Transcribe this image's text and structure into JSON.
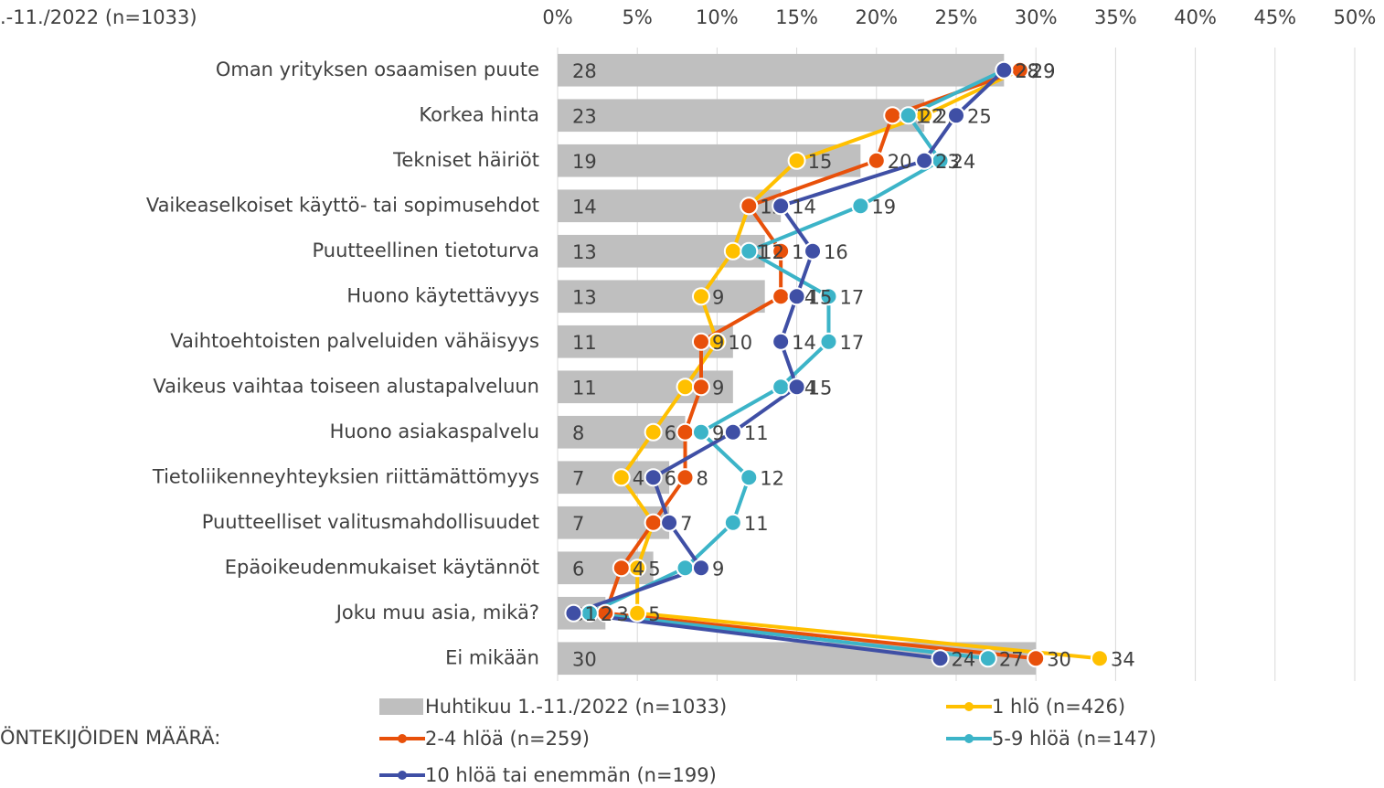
{
  "chart_data": {
    "type": "bar",
    "title": ".-11./2022 (n=1033)",
    "legend_title": "ÖNTEKIJÖIDEN MÄÄRÄ:",
    "categories": [
      "Oman yrityksen osaamisen puute",
      "Korkea hinta",
      "Tekniset häiriöt",
      "Vaikeaselkoiset käyttö- tai sopimusehdot",
      "Puutteellinen tietoturva",
      "Huono käytettävyys",
      "Vaihtoehtoisten palveluiden vähäisyys",
      "Vaikeus vaihtaa toiseen alustapalveluun",
      "Huono asiakaspalvelu",
      "Tietoliikenneyhteyksien riittämättömyys",
      "Puutteelliset valitusmahdollisuudet",
      "Epäoikeudenmukaiset käytännöt",
      "Joku muu asia, mikä?",
      "Ei mikään"
    ],
    "series": [
      {
        "name": "Huhtikuu 1.-11./2022 (n=1033)",
        "type": "bar",
        "color": "#bfbfbf",
        "values": [
          28,
          23,
          19,
          14,
          13,
          13,
          11,
          11,
          8,
          7,
          7,
          6,
          3,
          30
        ]
      },
      {
        "name": "1 hlö (n=426)",
        "type": "line",
        "color": "#ffc000",
        "values": [
          29,
          23,
          15,
          12,
          11,
          9,
          10,
          8,
          6,
          4,
          6,
          5,
          5,
          34
        ]
      },
      {
        "name": "2-4 hlöä (n=259)",
        "type": "line",
        "color": "#e8500a",
        "values": [
          29,
          21,
          20,
          12,
          14,
          14,
          9,
          9,
          8,
          8,
          6,
          4,
          3,
          30
        ]
      },
      {
        "name": "5-9 hlöä (n=147)",
        "type": "line",
        "color": "#3cb4c8",
        "values": [
          28,
          22,
          24,
          19,
          12,
          17,
          17,
          14,
          9,
          12,
          11,
          8,
          2,
          27
        ]
      },
      {
        "name": "10 hlöä tai enemmän (n=199)",
        "type": "line",
        "color": "#3f4fa5",
        "values": [
          28,
          25,
          23,
          14,
          16,
          15,
          14,
          15,
          11,
          6,
          7,
          9,
          1,
          24
        ]
      }
    ],
    "xlim": [
      0,
      50
    ],
    "xticks": [
      {
        "value": 0,
        "label": "0%"
      },
      {
        "value": 5,
        "label": "5%"
      },
      {
        "value": 10,
        "label": "10%"
      },
      {
        "value": 15,
        "label": "15%"
      },
      {
        "value": 20,
        "label": "20%"
      },
      {
        "value": 25,
        "label": "25%"
      },
      {
        "value": 30,
        "label": "30%"
      },
      {
        "value": 35,
        "label": "35%"
      },
      {
        "value": 40,
        "label": "40%"
      },
      {
        "value": 45,
        "label": "45%"
      },
      {
        "value": 50,
        "label": "50%"
      }
    ],
    "grid": true
  }
}
